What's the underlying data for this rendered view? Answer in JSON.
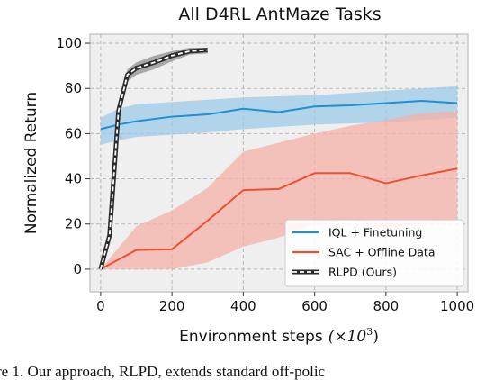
{
  "chart_data": {
    "type": "line",
    "title": "All D4RL AntMaze Tasks",
    "xlabel": "Environment steps",
    "xlabel_unit": "(×10",
    "xlabel_unit_exp": "3",
    "xlabel_unit_close": ")",
    "ylabel": "Normalized Return",
    "xlim": [
      -30,
      1030
    ],
    "ylim": [
      -10,
      104
    ],
    "xticks": [
      0,
      200,
      400,
      600,
      800,
      1000
    ],
    "yticks": [
      0,
      20,
      40,
      60,
      80,
      100
    ],
    "grid": true,
    "legend_position": "lower-right",
    "series": [
      {
        "name": "IQL + Finetuning",
        "color": "#1f8fd6",
        "band_color": "#9dcbe8",
        "x": [
          0,
          50,
          100,
          200,
          300,
          400,
          500,
          600,
          700,
          800,
          900,
          1000
        ],
        "y": [
          62,
          64,
          65.5,
          67.5,
          68.5,
          71,
          69.5,
          72,
          72.5,
          73.5,
          74.5,
          73.5
        ],
        "upper": [
          67,
          71,
          73,
          74,
          75,
          76,
          76.5,
          77,
          78,
          79,
          80,
          81
        ],
        "lower": [
          55,
          57,
          58.5,
          59.5,
          60.5,
          62,
          63,
          64,
          64.5,
          65,
          66,
          67
        ]
      },
      {
        "name": "SAC + Offline Data",
        "color": "#f05030",
        "band_color": "#f4b1a8",
        "x": [
          0,
          100,
          200,
          300,
          400,
          500,
          600,
          700,
          800,
          900,
          1000
        ],
        "y": [
          0,
          8.5,
          8.8,
          21.5,
          35,
          35.5,
          42.5,
          42.5,
          38,
          41.5,
          44.5
        ],
        "upper": [
          0,
          19,
          26,
          36,
          52,
          56,
          60,
          63.5,
          66,
          69,
          70
        ],
        "lower": [
          0,
          0,
          0,
          3,
          10,
          14,
          20,
          22,
          18,
          20,
          21
        ]
      },
      {
        "name": "RLPD (Ours)",
        "color": "#2b2b2b",
        "dash_color": "#ffffff",
        "band_color": "#9b9b9b",
        "x": [
          0,
          25,
          50,
          75,
          100,
          150,
          200,
          250,
          300
        ],
        "y": [
          0,
          15,
          70,
          86,
          89,
          91.5,
          94.5,
          96.5,
          97
        ],
        "upper": [
          0,
          17,
          73,
          88.5,
          91.5,
          94.5,
          96.5,
          98,
          98
        ],
        "lower": [
          0,
          13,
          67,
          83,
          86,
          88.5,
          92,
          95,
          95.5
        ]
      }
    ]
  },
  "caption": {
    "text": "re 1. Our approach, RLPD, extends standard off-polic"
  }
}
